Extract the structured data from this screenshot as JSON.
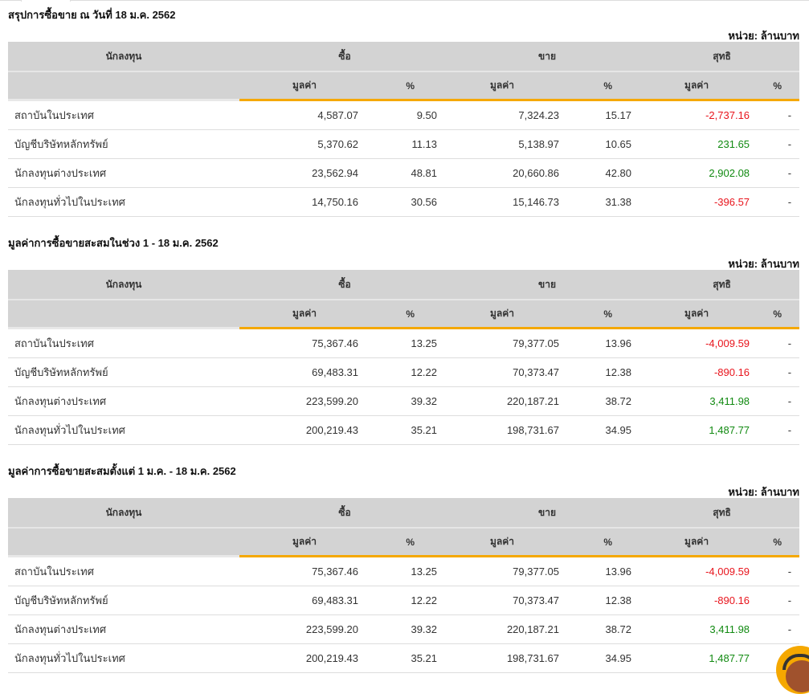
{
  "unit_label": "หน่วย: ล้านบาท",
  "headers": {
    "investor": "นักลงทุน",
    "buy": "ซื้อ",
    "sell": "ขาย",
    "net": "สุทธิ",
    "value": "มูลค่า",
    "pct": "%"
  },
  "sections": [
    {
      "title": "สรุปการซื้อขาย ณ วันที่ 18 ม.ค. 2562",
      "rows": [
        {
          "name": "สถาบันในประเทศ",
          "buy": "4,587.07",
          "buy_pct": "9.50",
          "sell": "7,324.23",
          "sell_pct": "15.17",
          "net": "-2,737.16",
          "net_pct": "-"
        },
        {
          "name": "บัญชีบริษัทหลักทรัพย์",
          "buy": "5,370.62",
          "buy_pct": "11.13",
          "sell": "5,138.97",
          "sell_pct": "10.65",
          "net": "231.65",
          "net_pct": "-"
        },
        {
          "name": "นักลงทุนต่างประเทศ",
          "buy": "23,562.94",
          "buy_pct": "48.81",
          "sell": "20,660.86",
          "sell_pct": "42.80",
          "net": "2,902.08",
          "net_pct": "-"
        },
        {
          "name": "นักลงทุนทั่วไปในประเทศ",
          "buy": "14,750.16",
          "buy_pct": "30.56",
          "sell": "15,146.73",
          "sell_pct": "31.38",
          "net": "-396.57",
          "net_pct": "-"
        }
      ]
    },
    {
      "title": "มูลค่าการซื้อขายสะสมในช่วง 1 - 18 ม.ค. 2562",
      "rows": [
        {
          "name": "สถาบันในประเทศ",
          "buy": "75,367.46",
          "buy_pct": "13.25",
          "sell": "79,377.05",
          "sell_pct": "13.96",
          "net": "-4,009.59",
          "net_pct": "-"
        },
        {
          "name": "บัญชีบริษัทหลักทรัพย์",
          "buy": "69,483.31",
          "buy_pct": "12.22",
          "sell": "70,373.47",
          "sell_pct": "12.38",
          "net": "-890.16",
          "net_pct": "-"
        },
        {
          "name": "นักลงทุนต่างประเทศ",
          "buy": "223,599.20",
          "buy_pct": "39.32",
          "sell": "220,187.21",
          "sell_pct": "38.72",
          "net": "3,411.98",
          "net_pct": "-"
        },
        {
          "name": "นักลงทุนทั่วไปในประเทศ",
          "buy": "200,219.43",
          "buy_pct": "35.21",
          "sell": "198,731.67",
          "sell_pct": "34.95",
          "net": "1,487.77",
          "net_pct": "-"
        }
      ]
    },
    {
      "title": "มูลค่าการซื้อขายสะสมตั้งแต่ 1 ม.ค. - 18 ม.ค. 2562",
      "rows": [
        {
          "name": "สถาบันในประเทศ",
          "buy": "75,367.46",
          "buy_pct": "13.25",
          "sell": "79,377.05",
          "sell_pct": "13.96",
          "net": "-4,009.59",
          "net_pct": "-"
        },
        {
          "name": "บัญชีบริษัทหลักทรัพย์",
          "buy": "69,483.31",
          "buy_pct": "12.22",
          "sell": "70,373.47",
          "sell_pct": "12.38",
          "net": "-890.16",
          "net_pct": "-"
        },
        {
          "name": "นักลงทุนต่างประเทศ",
          "buy": "223,599.20",
          "buy_pct": "39.32",
          "sell": "220,187.21",
          "sell_pct": "38.72",
          "net": "3,411.98",
          "net_pct": "-"
        },
        {
          "name": "นักลงทุนทั่วไปในประเทศ",
          "buy": "200,219.43",
          "buy_pct": "35.21",
          "sell": "198,731.67",
          "sell_pct": "34.95",
          "net": "1,487.77",
          "net_pct": "-"
        }
      ]
    }
  ],
  "colors": {
    "negative": "#e8141c",
    "positive": "#118a11",
    "accent": "#f5a800"
  }
}
